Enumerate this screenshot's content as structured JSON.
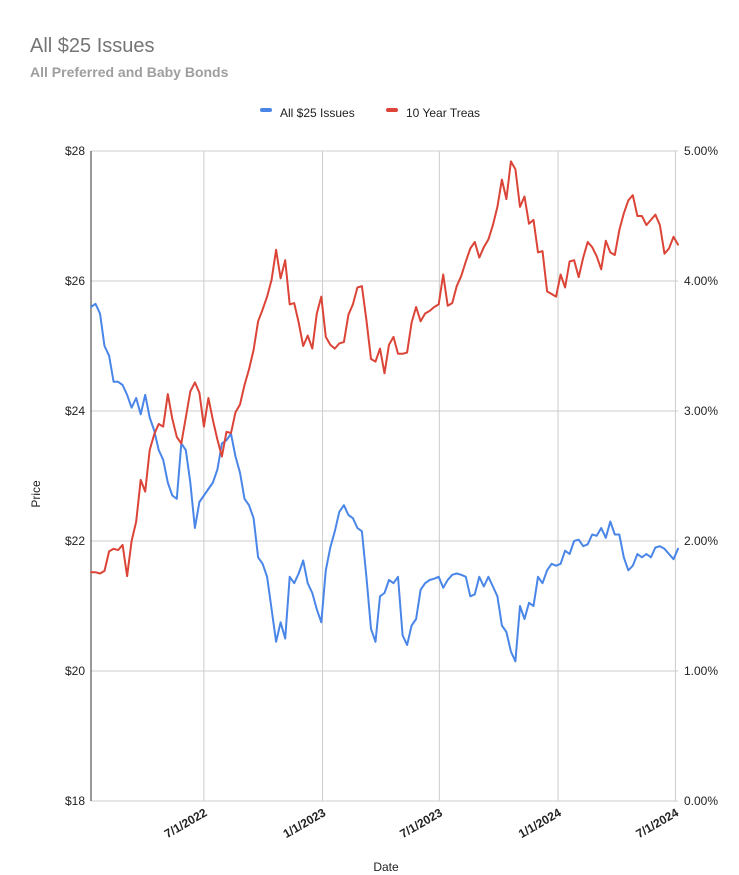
{
  "chart_data": {
    "type": "line",
    "title": "All $25 Issues",
    "subtitle": "All Preferred and Baby Bonds",
    "xlabel": "Date",
    "ylabel": "Price",
    "legend_position": "top",
    "grid": true,
    "x_ticks": [
      "7/1/2022",
      "1/1/2023",
      "7/1/2023",
      "1/1/2024",
      "7/1/2024"
    ],
    "y_left": {
      "ticks": [
        "$18",
        "$20",
        "$22",
        "$24",
        "$26",
        "$28"
      ],
      "range": [
        18,
        28
      ]
    },
    "y_right": {
      "ticks": [
        "0.00%",
        "1.00%",
        "2.00%",
        "3.00%",
        "4.00%",
        "5.00%"
      ],
      "range": [
        0,
        5
      ]
    },
    "x_range": [
      "2022-01-07",
      "2024-07-05"
    ],
    "series": [
      {
        "name": "All $25 Issues",
        "axis": "left",
        "color": "#4a86e8",
        "points": [
          [
            "2022-01-07",
            25.6
          ],
          [
            "2022-01-14",
            25.65
          ],
          [
            "2022-01-21",
            25.5
          ],
          [
            "2022-01-28",
            25.0
          ],
          [
            "2022-02-04",
            24.85
          ],
          [
            "2022-02-11",
            24.45
          ],
          [
            "2022-02-18",
            24.45
          ],
          [
            "2022-02-25",
            24.4
          ],
          [
            "2022-03-04",
            24.25
          ],
          [
            "2022-03-11",
            24.05
          ],
          [
            "2022-03-18",
            24.2
          ],
          [
            "2022-03-25",
            23.95
          ],
          [
            "2022-04-01",
            24.25
          ],
          [
            "2022-04-08",
            23.9
          ],
          [
            "2022-04-15",
            23.7
          ],
          [
            "2022-04-22",
            23.4
          ],
          [
            "2022-04-29",
            23.25
          ],
          [
            "2022-05-06",
            22.9
          ],
          [
            "2022-05-13",
            22.7
          ],
          [
            "2022-05-20",
            22.65
          ],
          [
            "2022-05-27",
            23.5
          ],
          [
            "2022-06-03",
            23.4
          ],
          [
            "2022-06-10",
            22.9
          ],
          [
            "2022-06-17",
            22.2
          ],
          [
            "2022-06-24",
            22.6
          ],
          [
            "2022-07-01",
            22.7
          ],
          [
            "2022-07-08",
            22.8
          ],
          [
            "2022-07-15",
            22.9
          ],
          [
            "2022-07-22",
            23.1
          ],
          [
            "2022-07-29",
            23.5
          ],
          [
            "2022-08-05",
            23.55
          ],
          [
            "2022-08-12",
            23.65
          ],
          [
            "2022-08-19",
            23.3
          ],
          [
            "2022-08-26",
            23.05
          ],
          [
            "2022-09-02",
            22.65
          ],
          [
            "2022-09-09",
            22.55
          ],
          [
            "2022-09-16",
            22.35
          ],
          [
            "2022-09-23",
            21.75
          ],
          [
            "2022-09-30",
            21.65
          ],
          [
            "2022-10-07",
            21.45
          ],
          [
            "2022-10-14",
            20.95
          ],
          [
            "2022-10-21",
            20.45
          ],
          [
            "2022-10-28",
            20.75
          ],
          [
            "2022-11-04",
            20.5
          ],
          [
            "2022-11-11",
            21.45
          ],
          [
            "2022-11-18",
            21.35
          ],
          [
            "2022-11-25",
            21.5
          ],
          [
            "2022-12-02",
            21.7
          ],
          [
            "2022-12-09",
            21.35
          ],
          [
            "2022-12-16",
            21.2
          ],
          [
            "2022-12-23",
            20.95
          ],
          [
            "2022-12-30",
            20.75
          ],
          [
            "2023-01-06",
            21.55
          ],
          [
            "2023-01-13",
            21.9
          ],
          [
            "2023-01-20",
            22.15
          ],
          [
            "2023-01-27",
            22.45
          ],
          [
            "2023-02-03",
            22.55
          ],
          [
            "2023-02-10",
            22.4
          ],
          [
            "2023-02-17",
            22.35
          ],
          [
            "2023-02-24",
            22.2
          ],
          [
            "2023-03-03",
            22.15
          ],
          [
            "2023-03-10",
            21.45
          ],
          [
            "2023-03-17",
            20.65
          ],
          [
            "2023-03-24",
            20.45
          ],
          [
            "2023-03-31",
            21.15
          ],
          [
            "2023-04-07",
            21.2
          ],
          [
            "2023-04-14",
            21.4
          ],
          [
            "2023-04-21",
            21.35
          ],
          [
            "2023-04-28",
            21.45
          ],
          [
            "2023-05-05",
            20.55
          ],
          [
            "2023-05-12",
            20.4
          ],
          [
            "2023-05-19",
            20.7
          ],
          [
            "2023-05-26",
            20.8
          ],
          [
            "2023-06-02",
            21.25
          ],
          [
            "2023-06-09",
            21.35
          ],
          [
            "2023-06-16",
            21.4
          ],
          [
            "2023-06-23",
            21.42
          ],
          [
            "2023-06-30",
            21.45
          ],
          [
            "2023-07-07",
            21.28
          ],
          [
            "2023-07-14",
            21.4
          ],
          [
            "2023-07-21",
            21.48
          ],
          [
            "2023-07-28",
            21.5
          ],
          [
            "2023-08-04",
            21.48
          ],
          [
            "2023-08-11",
            21.45
          ],
          [
            "2023-08-18",
            21.15
          ],
          [
            "2023-08-25",
            21.18
          ],
          [
            "2023-09-01",
            21.45
          ],
          [
            "2023-09-08",
            21.3
          ],
          [
            "2023-09-15",
            21.45
          ],
          [
            "2023-09-22",
            21.3
          ],
          [
            "2023-09-29",
            21.15
          ],
          [
            "2023-10-06",
            20.7
          ],
          [
            "2023-10-13",
            20.6
          ],
          [
            "2023-10-20",
            20.3
          ],
          [
            "2023-10-27",
            20.15
          ],
          [
            "2023-11-03",
            21.0
          ],
          [
            "2023-11-10",
            20.8
          ],
          [
            "2023-11-17",
            21.05
          ],
          [
            "2023-11-24",
            21.0
          ],
          [
            "2023-12-01",
            21.45
          ],
          [
            "2023-12-08",
            21.35
          ],
          [
            "2023-12-15",
            21.55
          ],
          [
            "2023-12-22",
            21.65
          ],
          [
            "2023-12-29",
            21.62
          ],
          [
            "2024-01-05",
            21.65
          ],
          [
            "2024-01-12",
            21.85
          ],
          [
            "2024-01-19",
            21.8
          ],
          [
            "2024-01-26",
            22.0
          ],
          [
            "2024-02-02",
            22.02
          ],
          [
            "2024-02-09",
            21.92
          ],
          [
            "2024-02-16",
            21.95
          ],
          [
            "2024-02-23",
            22.1
          ],
          [
            "2024-03-01",
            22.08
          ],
          [
            "2024-03-08",
            22.2
          ],
          [
            "2024-03-15",
            22.05
          ],
          [
            "2024-03-22",
            22.3
          ],
          [
            "2024-03-29",
            22.1
          ],
          [
            "2024-04-05",
            22.1
          ],
          [
            "2024-04-12",
            21.75
          ],
          [
            "2024-04-19",
            21.55
          ],
          [
            "2024-04-26",
            21.62
          ],
          [
            "2024-05-03",
            21.8
          ],
          [
            "2024-05-10",
            21.75
          ],
          [
            "2024-05-17",
            21.8
          ],
          [
            "2024-05-24",
            21.75
          ],
          [
            "2024-05-31",
            21.9
          ],
          [
            "2024-06-07",
            21.92
          ],
          [
            "2024-06-14",
            21.88
          ],
          [
            "2024-06-21",
            21.8
          ],
          [
            "2024-06-28",
            21.72
          ],
          [
            "2024-07-05",
            21.88
          ]
        ]
      },
      {
        "name": "10 Year Treas",
        "axis": "right",
        "color": "#db4437",
        "points": [
          [
            "2022-01-07",
            1.76
          ],
          [
            "2022-01-14",
            1.76
          ],
          [
            "2022-01-21",
            1.75
          ],
          [
            "2022-01-28",
            1.77
          ],
          [
            "2022-02-04",
            1.92
          ],
          [
            "2022-02-11",
            1.94
          ],
          [
            "2022-02-18",
            1.93
          ],
          [
            "2022-02-25",
            1.97
          ],
          [
            "2022-03-04",
            1.73
          ],
          [
            "2022-03-11",
            2.0
          ],
          [
            "2022-03-18",
            2.15
          ],
          [
            "2022-03-25",
            2.47
          ],
          [
            "2022-04-01",
            2.38
          ],
          [
            "2022-04-08",
            2.7
          ],
          [
            "2022-04-15",
            2.82
          ],
          [
            "2022-04-22",
            2.9
          ],
          [
            "2022-04-29",
            2.88
          ],
          [
            "2022-05-06",
            3.13
          ],
          [
            "2022-05-13",
            2.94
          ],
          [
            "2022-05-20",
            2.8
          ],
          [
            "2022-05-27",
            2.75
          ],
          [
            "2022-06-03",
            2.95
          ],
          [
            "2022-06-10",
            3.15
          ],
          [
            "2022-06-17",
            3.22
          ],
          [
            "2022-06-24",
            3.14
          ],
          [
            "2022-07-01",
            2.88
          ],
          [
            "2022-07-08",
            3.1
          ],
          [
            "2022-07-15",
            2.93
          ],
          [
            "2022-07-22",
            2.78
          ],
          [
            "2022-07-29",
            2.65
          ],
          [
            "2022-08-05",
            2.84
          ],
          [
            "2022-08-12",
            2.83
          ],
          [
            "2022-08-19",
            2.99
          ],
          [
            "2022-08-26",
            3.05
          ],
          [
            "2022-09-02",
            3.2
          ],
          [
            "2022-09-09",
            3.32
          ],
          [
            "2022-09-16",
            3.47
          ],
          [
            "2022-09-23",
            3.69
          ],
          [
            "2022-09-30",
            3.78
          ],
          [
            "2022-10-07",
            3.88
          ],
          [
            "2022-10-14",
            4.01
          ],
          [
            "2022-10-21",
            4.24
          ],
          [
            "2022-10-28",
            4.02
          ],
          [
            "2022-11-04",
            4.16
          ],
          [
            "2022-11-11",
            3.82
          ],
          [
            "2022-11-18",
            3.83
          ],
          [
            "2022-11-25",
            3.68
          ],
          [
            "2022-12-02",
            3.5
          ],
          [
            "2022-12-09",
            3.58
          ],
          [
            "2022-12-16",
            3.48
          ],
          [
            "2022-12-23",
            3.75
          ],
          [
            "2022-12-30",
            3.88
          ],
          [
            "2023-01-06",
            3.57
          ],
          [
            "2023-01-13",
            3.51
          ],
          [
            "2023-01-20",
            3.48
          ],
          [
            "2023-01-27",
            3.52
          ],
          [
            "2023-02-03",
            3.53
          ],
          [
            "2023-02-10",
            3.74
          ],
          [
            "2023-02-17",
            3.82
          ],
          [
            "2023-02-24",
            3.95
          ],
          [
            "2023-03-03",
            3.96
          ],
          [
            "2023-03-10",
            3.7
          ],
          [
            "2023-03-17",
            3.4
          ],
          [
            "2023-03-24",
            3.38
          ],
          [
            "2023-03-31",
            3.48
          ],
          [
            "2023-04-07",
            3.29
          ],
          [
            "2023-04-14",
            3.51
          ],
          [
            "2023-04-21",
            3.57
          ],
          [
            "2023-04-28",
            3.44
          ],
          [
            "2023-05-05",
            3.44
          ],
          [
            "2023-05-12",
            3.45
          ],
          [
            "2023-05-19",
            3.68
          ],
          [
            "2023-05-26",
            3.8
          ],
          [
            "2023-06-02",
            3.69
          ],
          [
            "2023-06-09",
            3.75
          ],
          [
            "2023-06-16",
            3.77
          ],
          [
            "2023-06-23",
            3.8
          ],
          [
            "2023-06-30",
            3.82
          ],
          [
            "2023-07-07",
            4.05
          ],
          [
            "2023-07-14",
            3.81
          ],
          [
            "2023-07-21",
            3.83
          ],
          [
            "2023-07-28",
            3.96
          ],
          [
            "2023-08-04",
            4.04
          ],
          [
            "2023-08-11",
            4.15
          ],
          [
            "2023-08-18",
            4.25
          ],
          [
            "2023-08-25",
            4.3
          ],
          [
            "2023-09-01",
            4.18
          ],
          [
            "2023-09-08",
            4.26
          ],
          [
            "2023-09-15",
            4.32
          ],
          [
            "2023-09-22",
            4.43
          ],
          [
            "2023-09-29",
            4.57
          ],
          [
            "2023-10-06",
            4.78
          ],
          [
            "2023-10-13",
            4.63
          ],
          [
            "2023-10-20",
            4.92
          ],
          [
            "2023-10-27",
            4.86
          ],
          [
            "2023-11-03",
            4.57
          ],
          [
            "2023-11-10",
            4.65
          ],
          [
            "2023-11-17",
            4.44
          ],
          [
            "2023-11-24",
            4.47
          ],
          [
            "2023-12-01",
            4.22
          ],
          [
            "2023-12-08",
            4.23
          ],
          [
            "2023-12-15",
            3.92
          ],
          [
            "2023-12-22",
            3.9
          ],
          [
            "2023-12-29",
            3.88
          ],
          [
            "2024-01-05",
            4.05
          ],
          [
            "2024-01-12",
            3.95
          ],
          [
            "2024-01-19",
            4.15
          ],
          [
            "2024-01-26",
            4.16
          ],
          [
            "2024-02-02",
            4.03
          ],
          [
            "2024-02-09",
            4.18
          ],
          [
            "2024-02-16",
            4.3
          ],
          [
            "2024-02-23",
            4.26
          ],
          [
            "2024-03-01",
            4.19
          ],
          [
            "2024-03-08",
            4.09
          ],
          [
            "2024-03-15",
            4.31
          ],
          [
            "2024-03-22",
            4.22
          ],
          [
            "2024-03-29",
            4.2
          ],
          [
            "2024-04-05",
            4.39
          ],
          [
            "2024-04-12",
            4.52
          ],
          [
            "2024-04-19",
            4.62
          ],
          [
            "2024-04-26",
            4.66
          ],
          [
            "2024-05-03",
            4.5
          ],
          [
            "2024-05-10",
            4.5
          ],
          [
            "2024-05-17",
            4.43
          ],
          [
            "2024-05-24",
            4.47
          ],
          [
            "2024-05-31",
            4.51
          ],
          [
            "2024-06-07",
            4.43
          ],
          [
            "2024-06-14",
            4.21
          ],
          [
            "2024-06-21",
            4.25
          ],
          [
            "2024-06-28",
            4.34
          ],
          [
            "2024-07-05",
            4.28
          ]
        ]
      }
    ]
  }
}
